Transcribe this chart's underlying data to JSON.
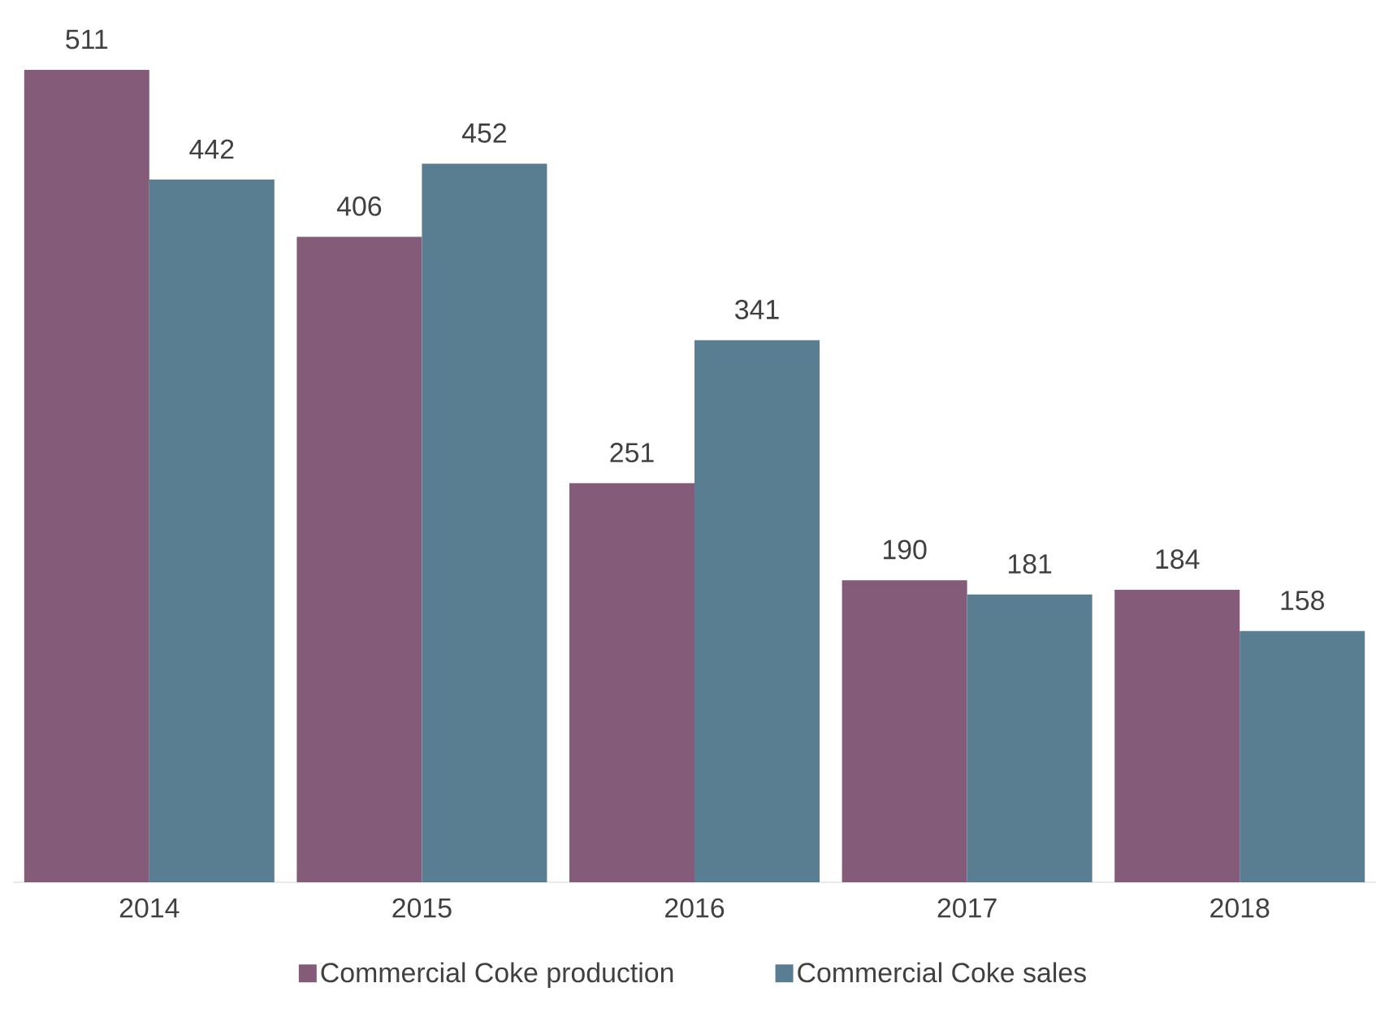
{
  "chart_data": {
    "type": "bar",
    "categories": [
      "2014",
      "2015",
      "2016",
      "2017",
      "2018"
    ],
    "series": [
      {
        "name": "Commercial Coke production",
        "color": "#845c7a",
        "values": [
          511,
          406,
          251,
          190,
          184
        ]
      },
      {
        "name": "Commercial Coke sales",
        "color": "#5a7e91",
        "values": [
          442,
          452,
          341,
          181,
          158
        ]
      }
    ],
    "data_labels": true,
    "legend": "bottom"
  }
}
